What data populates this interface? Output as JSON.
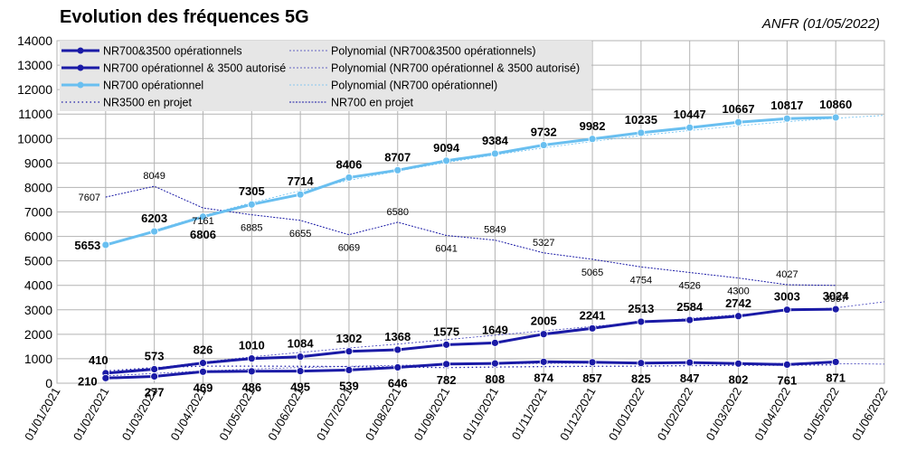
{
  "header": {
    "title": "Evolution des fréquences 5G",
    "source": "ANFR (01/05/2022)"
  },
  "chart_data": {
    "type": "line",
    "title": "Evolution des fréquences 5G",
    "xlabel": "",
    "ylabel": "",
    "ylim": [
      0,
      14000
    ],
    "ystep": 1000,
    "grid": true,
    "legend_position": "top-left",
    "categories": [
      "01/01/2021",
      "01/02/2021",
      "01/03/2021",
      "01/04/2021",
      "01/05/2021",
      "01/06/2021",
      "01/07/2021",
      "01/08/2021",
      "01/09/2021",
      "01/10/2021",
      "01/11/2021",
      "01/12/2021",
      "01/01/2022",
      "01/02/2022",
      "01/03/2022",
      "01/04/2022",
      "01/05/2022",
      "01/06/2022"
    ],
    "series": [
      {
        "name": "NR700&3500 opérationnels",
        "color": "#1a1aa6",
        "style": "solid-marker",
        "label_style": "bold",
        "label_pos": "above",
        "values": [
          null,
          410,
          573,
          826,
          1010,
          1084,
          1302,
          1368,
          1575,
          1649,
          2005,
          2241,
          2513,
          2584,
          2742,
          3003,
          3024,
          null
        ]
      },
      {
        "name": "NR700 opérationnel & 3500 autorisé",
        "color": "#1a1aa6",
        "style": "solid-marker",
        "label_style": "bold",
        "label_pos": "below",
        "values": [
          null,
          210,
          277,
          469,
          486,
          495,
          539,
          646,
          782,
          808,
          874,
          857,
          825,
          847,
          802,
          761,
          871,
          null
        ]
      },
      {
        "name": "NR700 opérationnel",
        "color": "#69bff0",
        "style": "solid-marker",
        "label_style": "bold",
        "label_pos": "mixed",
        "values": [
          null,
          5653,
          6203,
          6806,
          7305,
          7714,
          8406,
          8707,
          9094,
          9384,
          9732,
          9982,
          10235,
          10447,
          10667,
          10817,
          10860,
          null
        ]
      },
      {
        "name": "NR3500 en projet",
        "color": "#1a1aa6",
        "style": "dotted",
        "label_style": "none",
        "values": [
          null,
          500,
          640,
          700,
          700,
          690,
          680,
          660,
          640,
          660,
          680,
          690,
          700,
          720,
          730,
          740,
          750,
          null
        ]
      },
      {
        "name": "NR700 en projet",
        "color": "#1a1aa6",
        "style": "thin",
        "label_style": "small",
        "values": [
          null,
          7607,
          8049,
          7161,
          6885,
          6655,
          6069,
          6580,
          6041,
          5849,
          5327,
          5065,
          4754,
          4526,
          4300,
          4027,
          3997,
          null
        ]
      },
      {
        "name": "Polynomial (NR700&3500 opérationnels)",
        "color": "#3a3ab8",
        "style": "trend",
        "values": [
          null,
          380,
          620,
          860,
          1080,
          1260,
          1440,
          1600,
          1780,
          1960,
          2140,
          2320,
          2490,
          2650,
          2800,
          2950,
          3080,
          3330
        ]
      },
      {
        "name": "Polynomial (NR700 opérationnel & 3500 autorisé)",
        "color": "#3a3ab8",
        "style": "trend",
        "values": [
          null,
          300,
          400,
          500,
          580,
          640,
          690,
          730,
          760,
          790,
          810,
          820,
          830,
          830,
          820,
          810,
          800,
          780
        ]
      },
      {
        "name": "Polynomial (NR700 opérationnel)",
        "color": "#69bff0",
        "style": "trend",
        "values": [
          null,
          5600,
          6250,
          6850,
          7380,
          7860,
          8290,
          8670,
          9020,
          9330,
          9620,
          9880,
          10120,
          10330,
          10520,
          10690,
          10830,
          10950
        ]
      }
    ]
  }
}
